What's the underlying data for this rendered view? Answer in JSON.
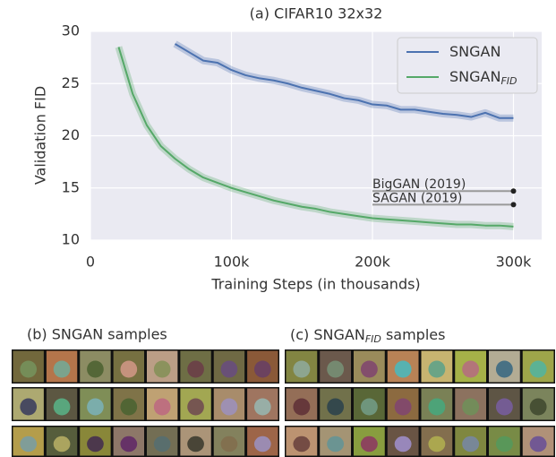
{
  "chart_data": {
    "type": "line",
    "title": "(a) CIFAR10 32x32",
    "x_label": "Training Steps (in thousands)",
    "y_label": "Validation FID",
    "xlim": [
      0,
      320000
    ],
    "ylim": [
      10,
      30
    ],
    "xticks": [
      0,
      {
        "value": 100000,
        "label": "100k"
      },
      {
        "value": 200000,
        "label": "200k"
      },
      {
        "value": 300000,
        "label": "300k"
      }
    ],
    "yticks": [
      10,
      15,
      20,
      25,
      30
    ],
    "grid": true,
    "background": "#eaeaf2",
    "legend": "upper right",
    "series": [
      {
        "name": "SNGAN",
        "color": "#4c72b0",
        "x": [
          60000,
          70000,
          80000,
          90000,
          100000,
          110000,
          120000,
          130000,
          140000,
          150000,
          160000,
          170000,
          180000,
          190000,
          200000,
          210000,
          220000,
          230000,
          240000,
          250000,
          260000,
          270000,
          280000,
          290000,
          300000
        ],
        "values": [
          28.8,
          28.0,
          27.2,
          27.0,
          26.3,
          25.8,
          25.5,
          25.3,
          25.0,
          24.6,
          24.3,
          24.0,
          23.6,
          23.4,
          23.0,
          22.9,
          22.5,
          22.5,
          22.3,
          22.1,
          22.0,
          21.8,
          22.2,
          21.7,
          21.7
        ]
      },
      {
        "name": "SNGAN",
        "name_subscript": "FID",
        "color": "#55a868",
        "x": [
          20000,
          30000,
          40000,
          50000,
          60000,
          70000,
          80000,
          90000,
          100000,
          110000,
          120000,
          130000,
          140000,
          150000,
          160000,
          170000,
          180000,
          190000,
          200000,
          210000,
          220000,
          230000,
          240000,
          250000,
          260000,
          270000,
          280000,
          290000,
          300000
        ],
        "values": [
          28.5,
          24.0,
          21.0,
          19.0,
          17.8,
          16.8,
          16.0,
          15.5,
          15.0,
          14.6,
          14.2,
          13.8,
          13.5,
          13.2,
          13.0,
          12.7,
          12.5,
          12.3,
          12.1,
          12.0,
          11.9,
          11.8,
          11.7,
          11.6,
          11.5,
          11.5,
          11.4,
          11.4,
          11.3
        ]
      }
    ],
    "references": [
      {
        "label": "BigGAN (2019)",
        "value": 14.7,
        "x_start": 200000,
        "x_end": 300000
      },
      {
        "label": "SAGAN (2019)",
        "value": 13.4,
        "x_start": 200000,
        "x_end": 300000
      }
    ]
  },
  "panels": [
    {
      "title": "(b) SNGAN samples"
    },
    {
      "title": "(c) SNGAN",
      "title_subscript": "FID",
      "title_suffix": " samples"
    }
  ]
}
